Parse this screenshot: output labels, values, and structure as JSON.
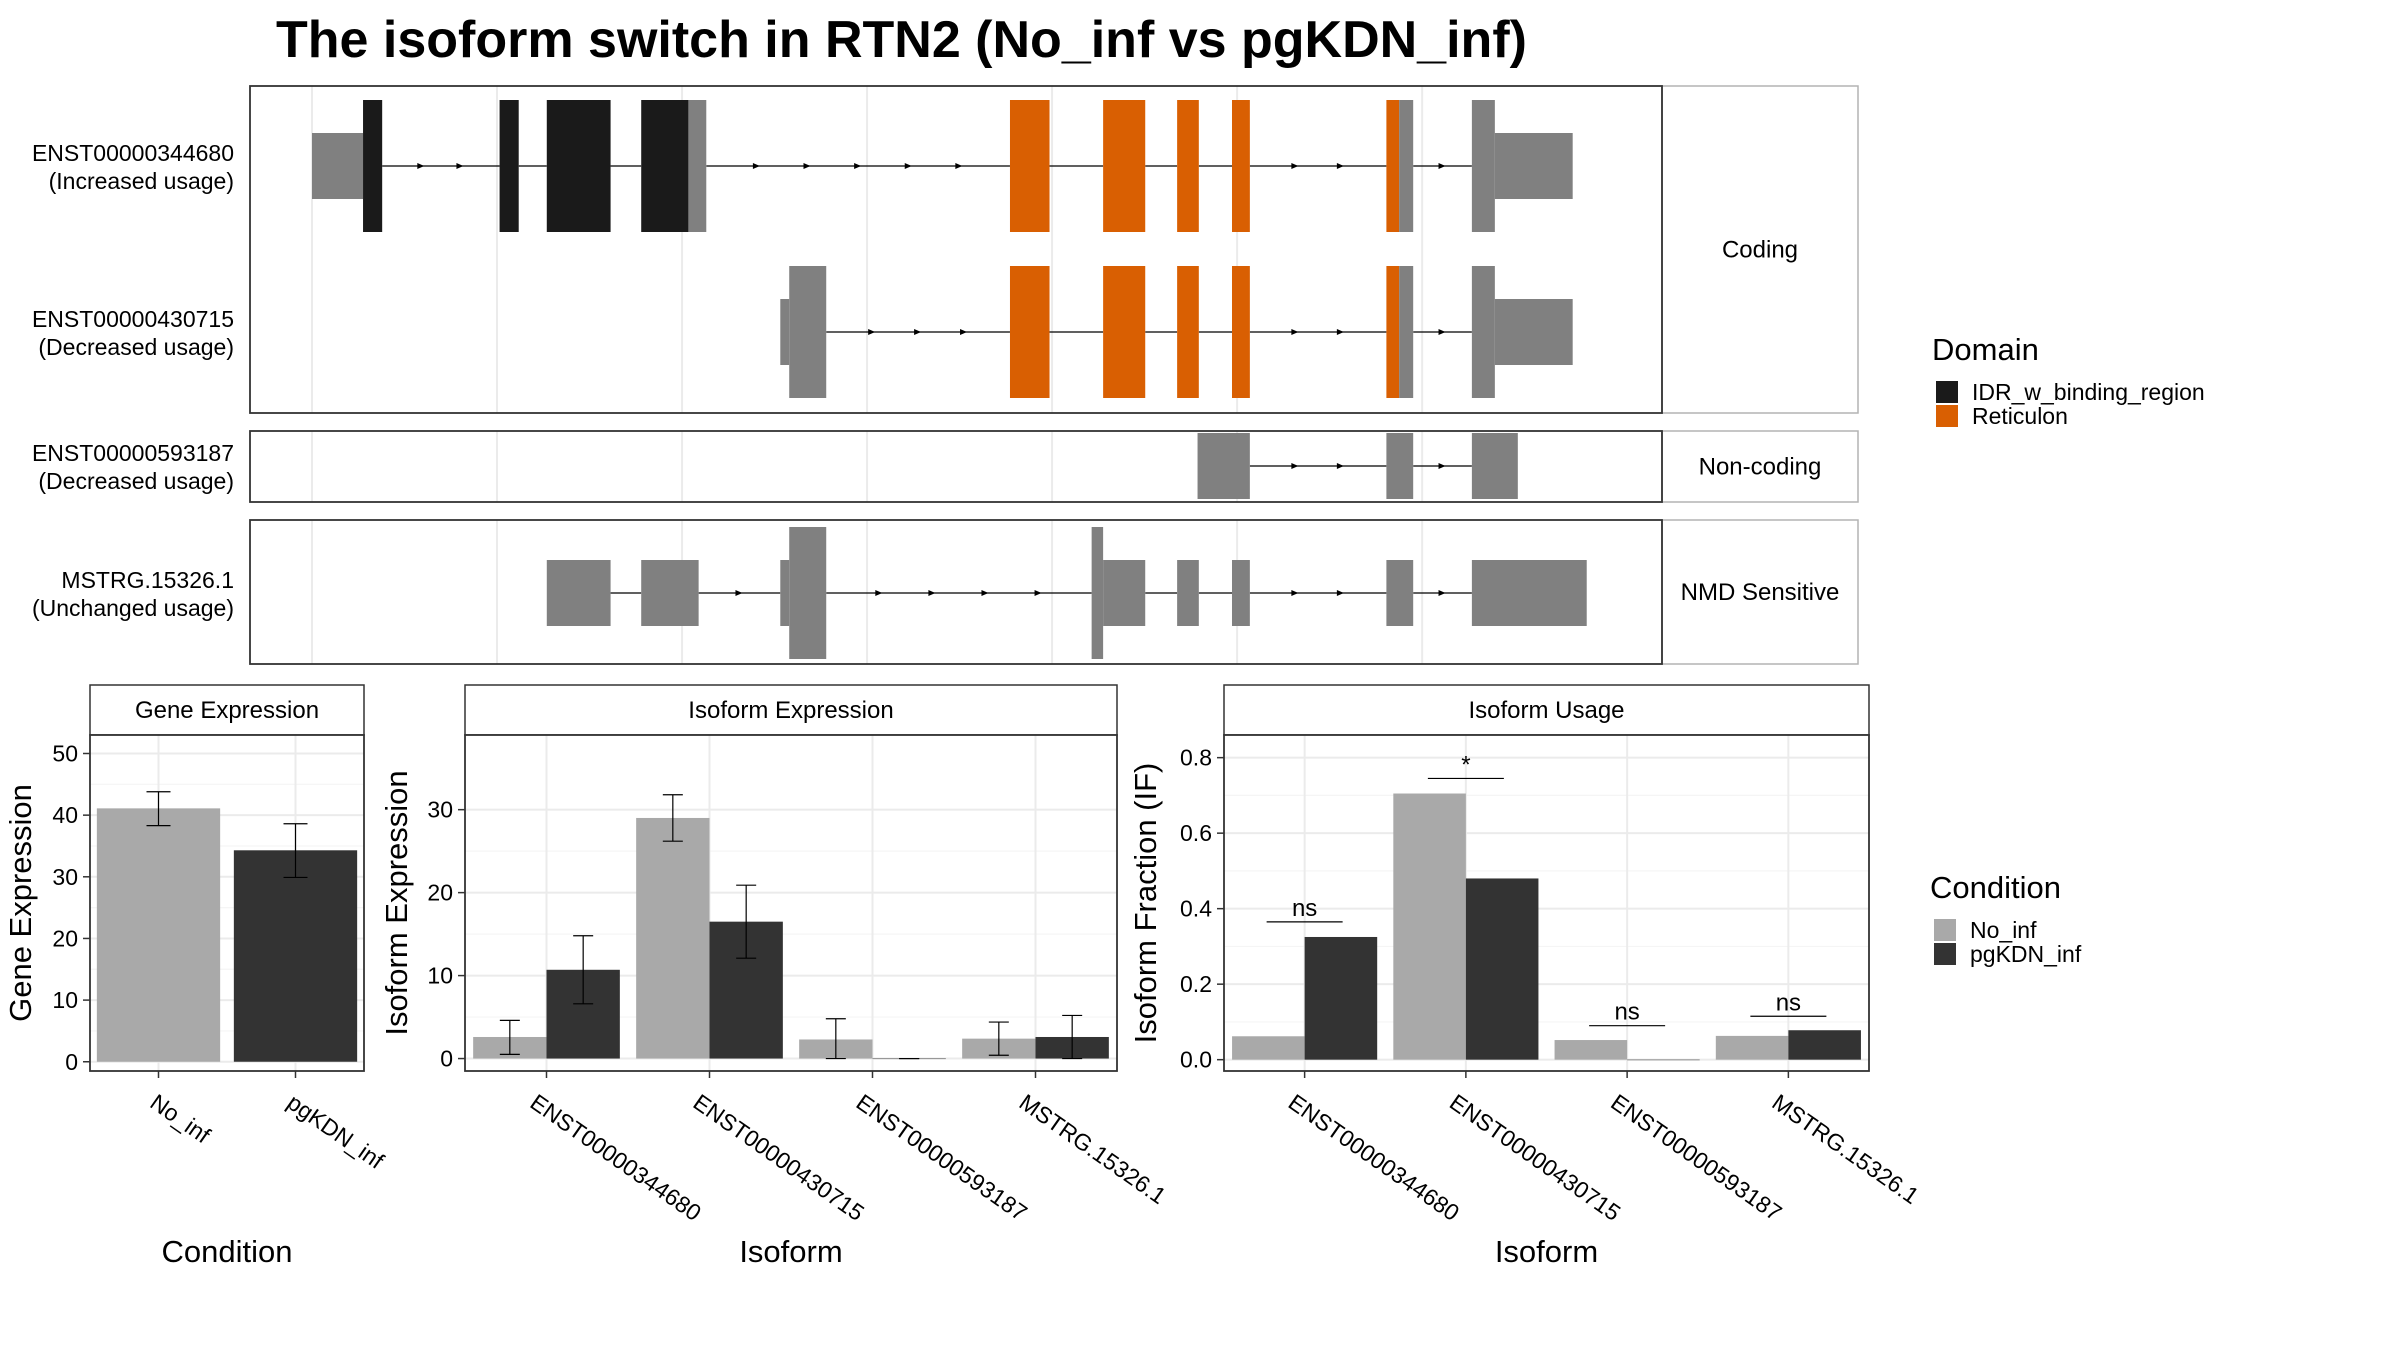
{
  "title": "The isoform switch in RTN2 (No_inf vs pgKDN_inf)",
  "colors": {
    "background": "#ffffff",
    "exon": "#808080",
    "idr": "#1a1a1a",
    "reticulon": "#d95f02",
    "no_inf": "#a9a9a9",
    "pgkdn_inf": "#333333",
    "grid": "#ebebeb",
    "strip_fill": "#ffffff"
  },
  "structure": {
    "genomic_range": [
      0,
      1000
    ],
    "facets": [
      {
        "label": "Coding",
        "transcripts": [
          "ENST00000344680",
          "ENST00000430715"
        ]
      },
      {
        "label": "Non-coding",
        "transcripts": [
          "ENST00000593187"
        ]
      },
      {
        "label": "NMD Sensitive",
        "transcripts": [
          "MSTRG.15326.1"
        ]
      }
    ],
    "transcripts": [
      {
        "id": "ENST00000344680",
        "usage": "(Increased usage)",
        "facet": 0,
        "exons": [
          {
            "s": 0,
            "e": 40,
            "kind": "utr"
          },
          {
            "s": 40,
            "e": 55,
            "kind": "cds",
            "domain": "idr"
          },
          {
            "s": 147,
            "e": 162,
            "kind": "cds",
            "domain": "idr"
          },
          {
            "s": 184,
            "e": 234,
            "kind": "cds",
            "domain": "idr"
          },
          {
            "s": 258,
            "e": 295,
            "kind": "cds",
            "domain": "idr"
          },
          {
            "s": 295,
            "e": 309,
            "kind": "cds"
          },
          {
            "s": 547,
            "e": 578,
            "kind": "cds",
            "domain": "reticulon"
          },
          {
            "s": 620,
            "e": 653,
            "kind": "cds",
            "domain": "reticulon"
          },
          {
            "s": 678,
            "e": 695,
            "kind": "cds",
            "domain": "reticulon"
          },
          {
            "s": 721,
            "e": 735,
            "kind": "cds",
            "domain": "reticulon"
          },
          {
            "s": 842,
            "e": 852,
            "kind": "cds",
            "domain": "reticulon"
          },
          {
            "s": 852,
            "e": 863,
            "kind": "cds"
          },
          {
            "s": 909,
            "e": 927,
            "kind": "cds"
          },
          {
            "s": 927,
            "e": 988,
            "kind": "utr"
          }
        ],
        "introns": [
          [
            55,
            147
          ],
          [
            162,
            184
          ],
          [
            234,
            258
          ],
          [
            309,
            547
          ],
          [
            578,
            620
          ],
          [
            653,
            678
          ],
          [
            695,
            721
          ],
          [
            735,
            842
          ],
          [
            863,
            909
          ]
        ]
      },
      {
        "id": "ENST00000430715",
        "usage": "(Decreased usage)",
        "facet": 0,
        "exons": [
          {
            "s": 367,
            "e": 374,
            "kind": "utr"
          },
          {
            "s": 374,
            "e": 403,
            "kind": "cds"
          },
          {
            "s": 547,
            "e": 578,
            "kind": "cds",
            "domain": "reticulon"
          },
          {
            "s": 620,
            "e": 653,
            "kind": "cds",
            "domain": "reticulon"
          },
          {
            "s": 678,
            "e": 695,
            "kind": "cds",
            "domain": "reticulon"
          },
          {
            "s": 721,
            "e": 735,
            "kind": "cds",
            "domain": "reticulon"
          },
          {
            "s": 842,
            "e": 852,
            "kind": "cds",
            "domain": "reticulon"
          },
          {
            "s": 852,
            "e": 863,
            "kind": "cds"
          },
          {
            "s": 909,
            "e": 927,
            "kind": "cds"
          },
          {
            "s": 927,
            "e": 988,
            "kind": "utr"
          }
        ],
        "introns": [
          [
            403,
            547
          ],
          [
            578,
            620
          ],
          [
            653,
            678
          ],
          [
            695,
            721
          ],
          [
            735,
            842
          ],
          [
            863,
            909
          ]
        ]
      },
      {
        "id": "ENST00000593187",
        "usage": "(Decreased usage)",
        "facet": 1,
        "exons": [
          {
            "s": 694,
            "e": 735,
            "kind": "utr"
          },
          {
            "s": 842,
            "e": 863,
            "kind": "utr"
          },
          {
            "s": 909,
            "e": 945,
            "kind": "utr"
          }
        ],
        "introns": [
          [
            735,
            842
          ],
          [
            863,
            909
          ]
        ]
      },
      {
        "id": "MSTRG.15326.1",
        "usage": "(Unchanged usage)",
        "facet": 2,
        "exons": [
          {
            "s": 184,
            "e": 234,
            "kind": "utr"
          },
          {
            "s": 258,
            "e": 303,
            "kind": "utr"
          },
          {
            "s": 367,
            "e": 374,
            "kind": "utr"
          },
          {
            "s": 374,
            "e": 403,
            "kind": "cds"
          },
          {
            "s": 611,
            "e": 620,
            "kind": "cds"
          },
          {
            "s": 620,
            "e": 653,
            "kind": "utr"
          },
          {
            "s": 678,
            "e": 695,
            "kind": "utr"
          },
          {
            "s": 721,
            "e": 735,
            "kind": "utr"
          },
          {
            "s": 842,
            "e": 863,
            "kind": "utr"
          },
          {
            "s": 909,
            "e": 999,
            "kind": "utr"
          }
        ],
        "introns": [
          [
            234,
            258
          ],
          [
            303,
            367
          ],
          [
            403,
            611
          ],
          [
            653,
            678
          ],
          [
            695,
            721
          ],
          [
            735,
            842
          ],
          [
            863,
            909
          ]
        ]
      }
    ]
  },
  "domain_legend": {
    "title": "Domain",
    "items": [
      {
        "label": "IDR_w_binding_region",
        "color": "#1a1a1a"
      },
      {
        "label": "Reticulon",
        "color": "#d95f02"
      }
    ]
  },
  "condition_legend": {
    "title": "Condition",
    "items": [
      {
        "label": "No_inf",
        "color": "#a9a9a9"
      },
      {
        "label": "pgKDN_inf",
        "color": "#333333"
      }
    ]
  },
  "chart_data": [
    {
      "type": "bar",
      "panel": "Gene Expression",
      "categories": [
        "No_inf",
        "pgKDN_inf"
      ],
      "values": [
        41.1,
        34.3
      ],
      "error": [
        [
          38.3,
          43.8
        ],
        [
          29.9,
          38.6
        ]
      ],
      "xlabel": "Condition",
      "ylabel": "Gene Expression",
      "ylim": [
        -1.5,
        53
      ],
      "yticks": [
        0,
        10,
        20,
        30,
        40,
        50
      ],
      "grid": true
    },
    {
      "type": "bar",
      "panel": "Isoform Expression",
      "categories": [
        "ENST00000344680",
        "ENST00000430715",
        "ENST00000593187",
        "MSTRG.15326.1"
      ],
      "series": [
        {
          "name": "No_inf",
          "values": [
            2.6,
            29.0,
            2.3,
            2.4
          ],
          "error": [
            [
              0.5,
              4.6
            ],
            [
              26.2,
              31.8
            ],
            [
              0.0,
              4.8
            ],
            [
              0.4,
              4.4
            ]
          ]
        },
        {
          "name": "pgKDN_inf",
          "values": [
            10.7,
            16.5,
            0.0,
            2.6
          ],
          "error": [
            [
              6.6,
              14.8
            ],
            [
              12.1,
              20.9
            ],
            [
              0.0,
              0.0
            ],
            [
              0.0,
              5.2
            ]
          ]
        }
      ],
      "xlabel": "Isoform",
      "ylabel": "Isoform Expression",
      "ylim": [
        -1.5,
        39
      ],
      "yticks": [
        0,
        10,
        20,
        30
      ],
      "grid": true
    },
    {
      "type": "bar",
      "panel": "Isoform Usage",
      "categories": [
        "ENST00000344680",
        "ENST00000430715",
        "ENST00000593187",
        "MSTRG.15326.1"
      ],
      "series": [
        {
          "name": "No_inf",
          "values": [
            0.062,
            0.705,
            0.052,
            0.063
          ]
        },
        {
          "name": "pgKDN_inf",
          "values": [
            0.325,
            0.48,
            0.0,
            0.078
          ]
        }
      ],
      "significance": [
        "ns",
        "*",
        "ns",
        "ns"
      ],
      "significance_y": [
        0.365,
        0.745,
        0.09,
        0.115
      ],
      "xlabel": "Isoform",
      "ylabel": "Isoform Fraction (IF)",
      "ylim": [
        -0.03,
        0.86
      ],
      "yticks": [
        0.0,
        0.2,
        0.4,
        0.6,
        0.8
      ],
      "ytick_labels": [
        "0.0",
        "0.2",
        "0.4",
        "0.6",
        "0.8"
      ],
      "grid": true
    }
  ]
}
